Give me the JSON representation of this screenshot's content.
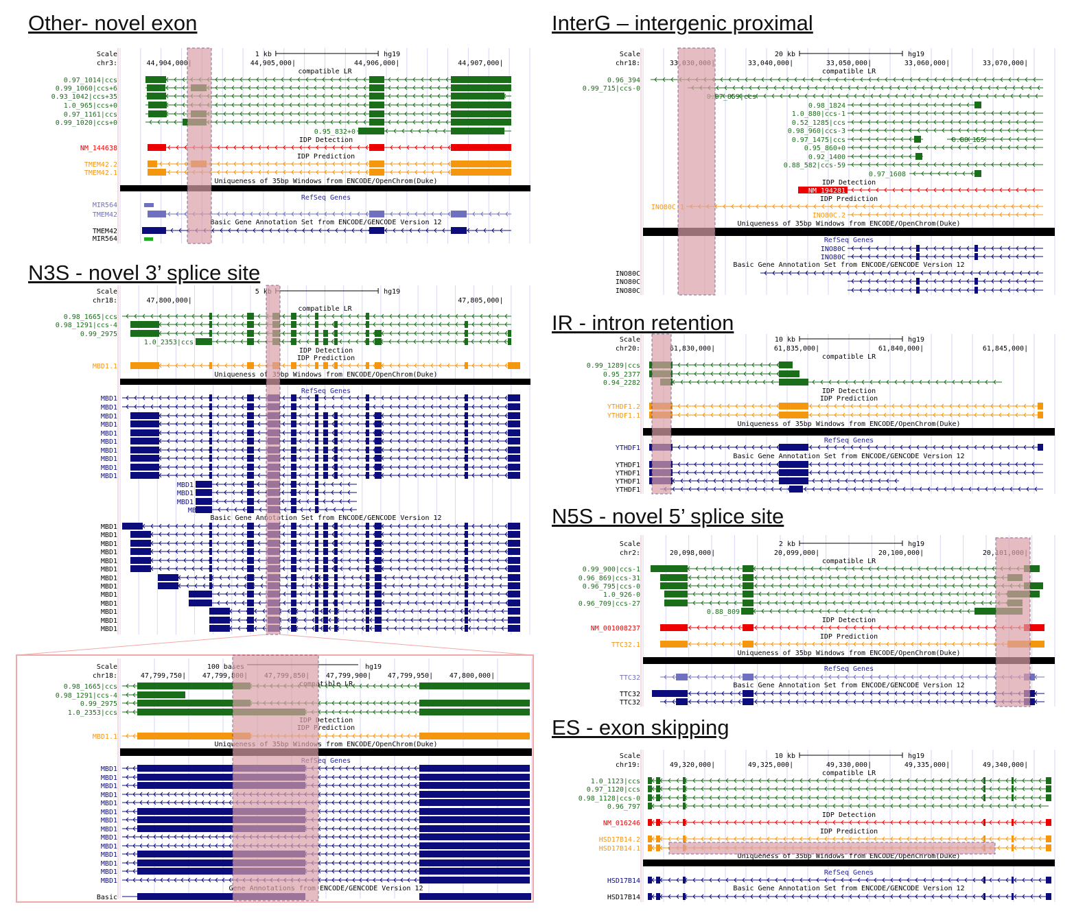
{
  "colors": {
    "lr": "#1a6e1a",
    "refseq_red": "#ee0000",
    "idp": "#f5960f",
    "gencode": "#0c0c7c",
    "refseq_gene": "#7070c0",
    "highlight": "#d9a0a8",
    "track_black": "#000000"
  },
  "common": {
    "scale": "Scale",
    "assembly": "hg19",
    "compatible_lr": "compatible LR",
    "idp_detection": "IDP Detection",
    "idp_prediction": "IDP Prediction",
    "uniqueness": "Uniqueness of 35bp Windows from ENCODE/OpenChrom(Duke)",
    "refseq_genes": "RefSeq Genes",
    "gencode": "Basic Gene Annotation Set from ENCODE/GENCODE Version 12"
  },
  "panels": {
    "other": {
      "title": "Other- novel exon",
      "chrom": "chr3:",
      "scale_label": "1 kb",
      "ticks": [
        "44,904,000|",
        "44,905,000|",
        "44,906,000|",
        "44,907,000|"
      ],
      "lr": [
        "0.97_1014|ccs",
        "0.99_1060|ccs+6",
        "0.93_1042|ccs+35",
        "1.0_965|ccs+0",
        "0.97_1161|ccs",
        "0.99_1020|ccs+0",
        "0.95_832+0"
      ],
      "det": [
        "NM_144638"
      ],
      "pred": [
        "TMEM42.2",
        "TMEM42.1"
      ],
      "refseq": [
        "MIR564",
        "TMEM42"
      ],
      "gencode_labels": [
        "TMEM42",
        "MIR564"
      ]
    },
    "n3s": {
      "title": "N3S - novel 3’ splice site",
      "chrom": "chr18:",
      "scale_label": "5 kb",
      "ticks": [
        "47,800,000|",
        "47,805,000|"
      ],
      "lr": [
        "0.98_1665|ccs",
        "0.98_1291|ccs-4",
        "0.99_2975",
        "1.0_2353|ccs"
      ],
      "pred": [
        "MBD1.1"
      ],
      "gene": "MBD1"
    },
    "zoom": {
      "chrom": "chr18:",
      "scale_label": "100 bases",
      "ticks": [
        "47,799,750|",
        "47,799,800|",
        "47,799,850|",
        "47,799,900|",
        "47,799,950|",
        "47,800,000|"
      ],
      "lr": [
        "0.98_1665|ccs",
        "0.98_1291|ccs-4",
        "0.99_2975",
        "1.0_2353|ccs"
      ],
      "pred": [
        "MBD1.1"
      ],
      "gene": "MBD1",
      "basic": "Basic",
      "gencode_zoom": "Gene Annotations from ENCODE/GENCODE Version 12"
    },
    "interg": {
      "title": "InterG – intergenic proximal",
      "chrom": "chr18:",
      "scale_label": "20 kb",
      "ticks": [
        "33,030,000|",
        "33,040,000|",
        "33,050,000|",
        "33,060,000|",
        "33,070,000|"
      ],
      "lr": [
        "0.96_394",
        "0.99_715|ccs-0",
        "0.97_859|ccs",
        "0.98_1824",
        "1.0_880|ccs-1",
        "0.52_1285|ccs",
        "0.98_960|ccs-3",
        "0.97_1475|ccs",
        "0.88_155",
        "0.95_860+0",
        "0.92_1400",
        "0.88_582|ccs-59",
        "0.97_1608"
      ],
      "det": [
        "NM_194281"
      ],
      "pred": [
        "INO80C.1",
        "INO80C.2"
      ],
      "refseq": [
        "INO80C",
        "INO80C"
      ],
      "gencode_labels": [
        "INO80C",
        "INO80C",
        "INO80C"
      ]
    },
    "ir": {
      "title": "IR - intron retention",
      "chrom": "chr20:",
      "scale_label": "10 kb",
      "ticks": [
        "61,830,000|",
        "61,835,000|",
        "61,840,000|",
        "61,845,000|"
      ],
      "lr": [
        "0.99_1289|ccs",
        "0.95_2377",
        "0.94_2282"
      ],
      "pred": [
        "YTHDF1.2",
        "YTHDF1.1"
      ],
      "refseq": [
        "YTHDF1"
      ],
      "gencode_labels": [
        "YTHDF1",
        "YTHDF1",
        "YTHDF1",
        "YTHDF1"
      ]
    },
    "n5s": {
      "title": "N5S - novel 5’ splice site",
      "chrom": "chr2:",
      "scale_label": "2 kb",
      "ticks": [
        "20,098,000|",
        "20,099,000|",
        "20,100,000|",
        "20,101,000|"
      ],
      "lr": [
        "0.99_900|ccs-1",
        "0.96_869|ccs-31",
        "0.96_795|ccs-0",
        "1.0_926-0",
        "0.96_709|ccs-27",
        "0.88_809"
      ],
      "det": [
        "NM_001008237"
      ],
      "pred": [
        "TTC32.1"
      ],
      "refseq": [
        "TTC32"
      ],
      "gencode_labels": [
        "TTC32",
        "TTC32"
      ]
    },
    "es": {
      "title": "ES - exon skipping",
      "chrom": "chr19:",
      "scale_label": "10 kb",
      "ticks": [
        "49,320,000|",
        "49,325,000|",
        "49,330,000|",
        "49,335,000|",
        "49,340,000|"
      ],
      "lr": [
        "1.0_1123|ccs",
        "0.97_1120|ccs",
        "0.98_1128|ccs-0",
        "0.96_797"
      ],
      "det": [
        "NM_016246"
      ],
      "pred": [
        "HSD17B14.2",
        "HSD17B14.1"
      ],
      "refseq": [
        "HSD17B14"
      ],
      "gencode_labels": [
        "HSD17B14"
      ]
    }
  }
}
